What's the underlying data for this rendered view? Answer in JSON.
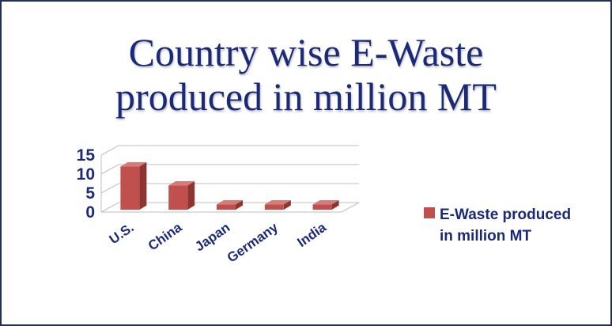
{
  "title_lines": [
    "Country wise E-Waste",
    "produced in million  MT"
  ],
  "chart_data": {
    "type": "bar",
    "title": "Country wise E-Waste produced in million  MT",
    "categories": [
      "U.S.",
      "China",
      "Japan",
      "Germany",
      "India"
    ],
    "series": [
      {
        "name": "E-Waste produced in million  MT",
        "values": [
          12,
          7,
          2,
          2,
          2
        ]
      }
    ],
    "ylim": [
      0,
      15
    ],
    "yticks": [
      0,
      5,
      10,
      15
    ],
    "grid": true,
    "legend_position": "right",
    "three_d": true,
    "colors": {
      "bar_front": "#c0504d",
      "bar_side": "#8e3432",
      "bar_top": "#d77a78",
      "gridline": "#bfbfbf",
      "text": "#1b2a78",
      "border": "#1f2f56"
    }
  },
  "legend": {
    "label": "E-Waste produced\nin million  MT"
  }
}
